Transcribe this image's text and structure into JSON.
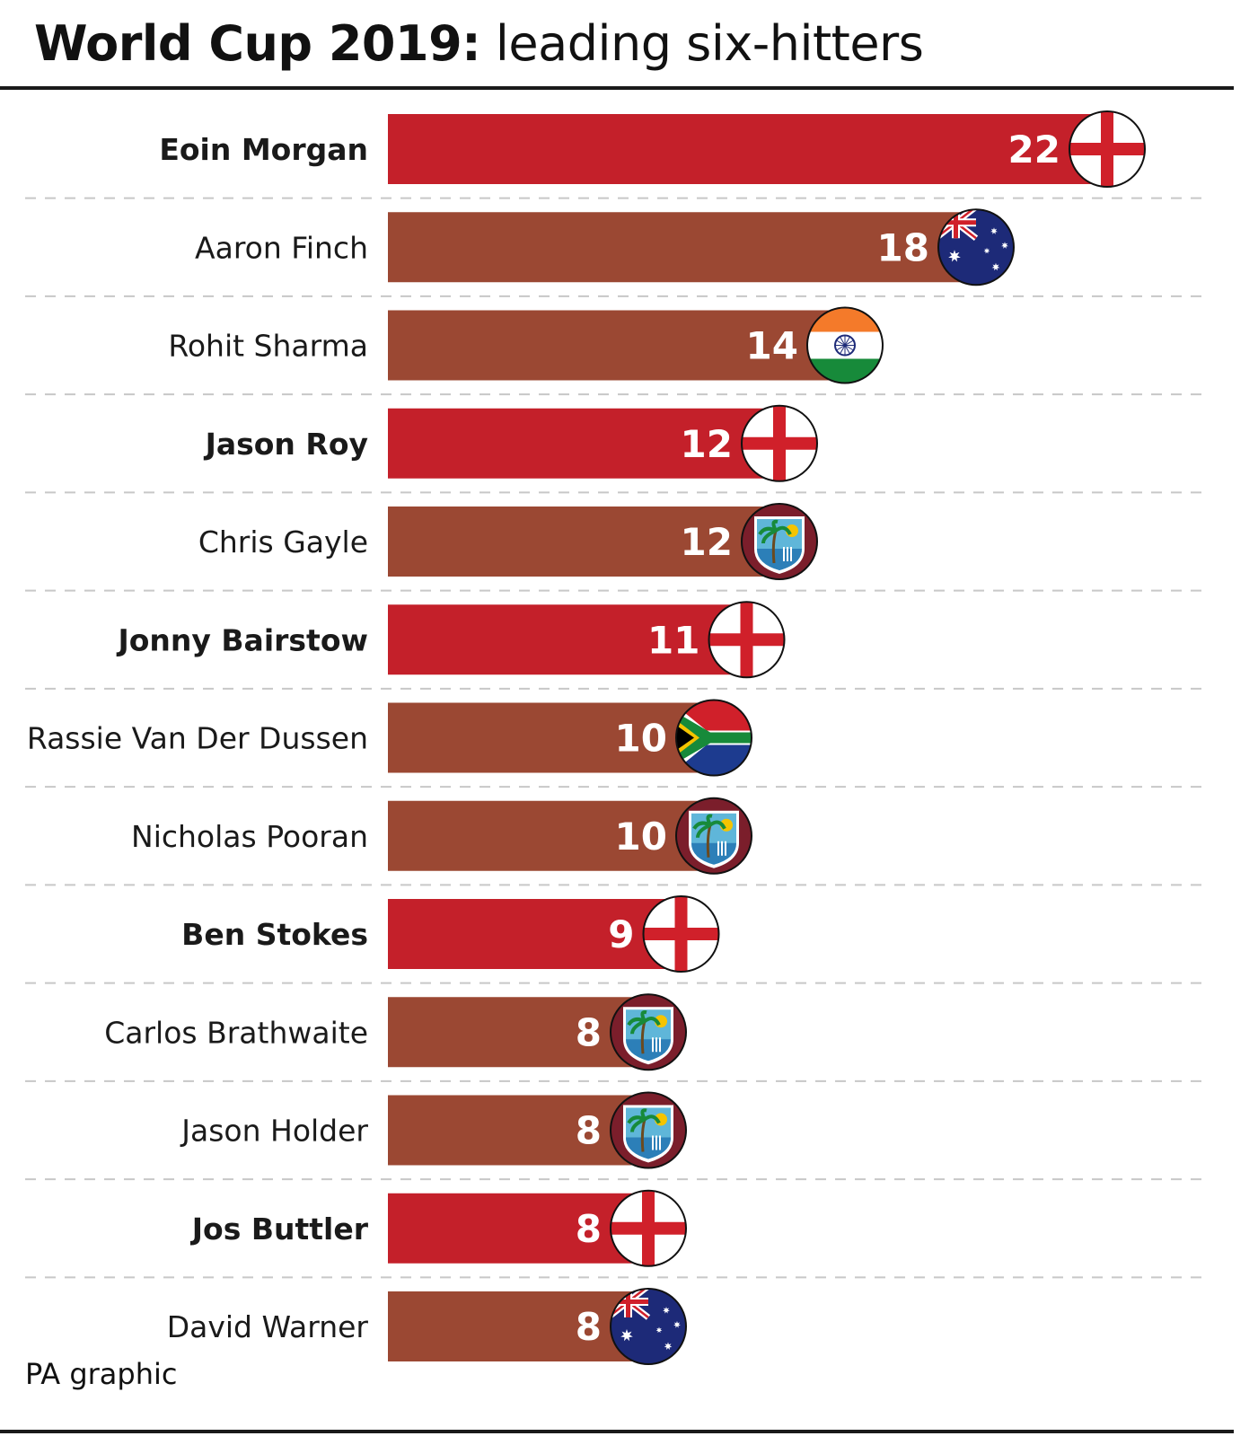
{
  "title": {
    "bold": "World Cup 2019:",
    "light": "leading six-hitters"
  },
  "source": "PA graphic",
  "colors": {
    "england_bar": "#c4202a",
    "other_bar": "#9b4833",
    "text": "#1a1a1a",
    "divider": "#c8c8c8"
  },
  "chart_data": {
    "type": "bar",
    "orientation": "horizontal",
    "title": "World Cup 2019: leading six-hitters",
    "categories": [
      "Eoin Morgan",
      "Aaron Finch",
      "Rohit Sharma",
      "Jason Roy",
      "Chris Gayle",
      "Jonny Bairstow",
      "Rassie Van Der Dussen",
      "Nicholas Pooran",
      "Ben Stokes",
      "Carlos Brathwaite",
      "Jason Holder",
      "Jos Buttler",
      "David Warner"
    ],
    "values": [
      22,
      18,
      14,
      12,
      12,
      11,
      10,
      10,
      9,
      8,
      8,
      8,
      8
    ],
    "teams": [
      "england",
      "australia",
      "india",
      "england",
      "west-indies",
      "england",
      "south-africa",
      "west-indies",
      "england",
      "west-indies",
      "west-indies",
      "england",
      "australia"
    ],
    "xlim": [
      0,
      22
    ],
    "grid": false,
    "legend": "none",
    "value_labels": true
  }
}
